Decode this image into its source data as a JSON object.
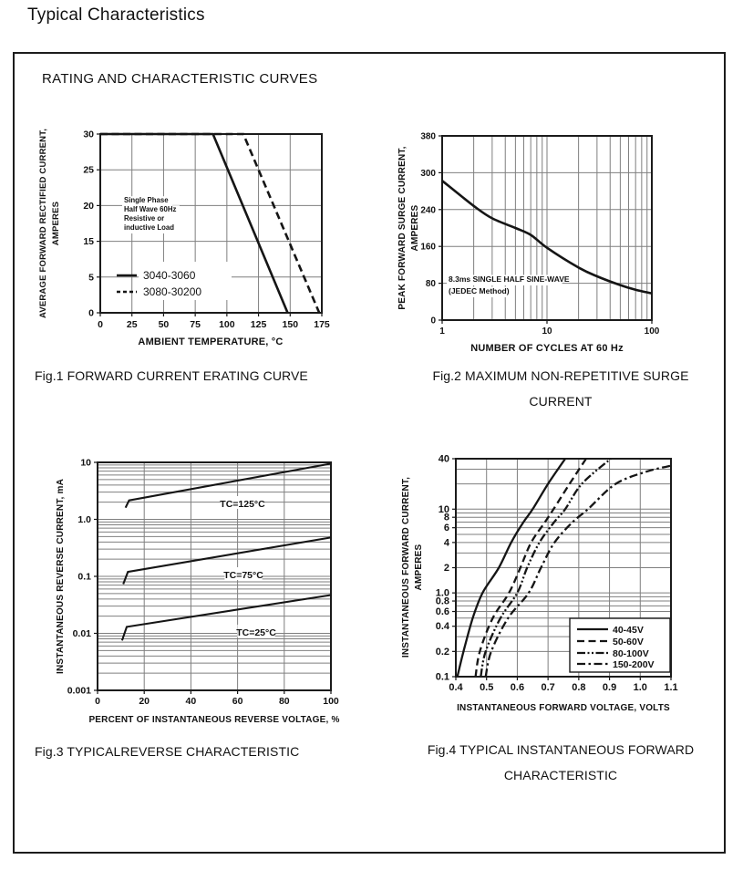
{
  "page": {
    "title": "Typical Characteristics",
    "section_heading": "RATING AND CHARACTERISTIC CURVES"
  },
  "chart_data": [
    {
      "id": "fig1",
      "type": "line",
      "caption_lines": [
        "Fig.1 FORWARD CURRENT ERATING CURVE"
      ],
      "xlabel": "AMBIENT TEMPERATURE, °C",
      "ylabel_lines": [
        "AVERAGE FORWARD RECTIFIED CURRENT,",
        "AMPERES"
      ],
      "x_axis": {
        "scale": "linear",
        "min": 0,
        "max": 175,
        "ticks": [
          {
            "v": 0,
            "label": "0"
          },
          {
            "v": 25,
            "label": "25"
          },
          {
            "v": 50,
            "label": "50"
          },
          {
            "v": 75,
            "label": "75"
          },
          {
            "v": 100,
            "label": "100"
          },
          {
            "v": 125,
            "label": "125"
          },
          {
            "v": 150,
            "label": "150"
          },
          {
            "v": 175,
            "label": "175"
          }
        ]
      },
      "y_axis": {
        "scale": "piecewise",
        "tick_values": [
          0,
          5,
          15,
          20,
          25,
          30
        ],
        "ticks": [
          {
            "v": 0,
            "label": "0"
          },
          {
            "v": 5,
            "label": "5"
          },
          {
            "v": 15,
            "label": "15"
          },
          {
            "v": 20,
            "label": "20"
          },
          {
            "v": 25,
            "label": "25"
          },
          {
            "v": 30,
            "label": "30"
          }
        ]
      },
      "note_lines": [
        "Single Phase",
        "Half Wave 60Hz",
        "Resistive or",
        "inductive Load"
      ],
      "series": [
        {
          "name": "3040-3060",
          "style": "solid",
          "smooth": false,
          "points": [
            [
              0,
              30
            ],
            [
              89,
              30
            ],
            [
              148,
              0
            ]
          ]
        },
        {
          "name": "3080-30200",
          "style": "dashed",
          "smooth": false,
          "points": [
            [
              0,
              30
            ],
            [
              113,
              30
            ],
            [
              173,
              0
            ]
          ]
        }
      ]
    },
    {
      "id": "fig2",
      "type": "line",
      "caption_lines": [
        "Fig.2 MAXIMUM NON-REPETITIVE SURGE",
        "CURRENT"
      ],
      "xlabel": "NUMBER OF CYCLES AT 60 Hz",
      "ylabel_lines": [
        "PEAK FORWARD SURGE CURRENT,",
        "AMPERES"
      ],
      "x_axis": {
        "scale": "log",
        "min": 1,
        "max": 100,
        "minor_grid": true,
        "ticks": [
          {
            "v": 1,
            "label": "1"
          },
          {
            "v": 10,
            "label": "10"
          },
          {
            "v": 100,
            "label": "100"
          }
        ]
      },
      "y_axis": {
        "scale": "piecewise",
        "tick_values": [
          0,
          80,
          160,
          240,
          300,
          380
        ],
        "ticks": [
          {
            "v": 0,
            "label": "0"
          },
          {
            "v": 80,
            "label": "80"
          },
          {
            "v": 160,
            "label": "160"
          },
          {
            "v": 240,
            "label": "240"
          },
          {
            "v": 300,
            "label": "300"
          },
          {
            "v": 380,
            "label": "380"
          }
        ]
      },
      "note_lines": [
        "8.3ms SINGLE HALF SINE-WAVE",
        "(JEDEC Method)"
      ],
      "series": [
        {
          "name": "surge-current",
          "style": "solid",
          "smooth": true,
          "points": [
            [
              1,
              287
            ],
            [
              2,
              246
            ],
            [
              3,
              221
            ],
            [
              5,
              200
            ],
            [
              7,
              185
            ],
            [
              10,
              157
            ],
            [
              20,
              114
            ],
            [
              30,
              95
            ],
            [
              50,
              76
            ],
            [
              70,
              66
            ],
            [
              100,
              58
            ]
          ]
        }
      ]
    },
    {
      "id": "fig3",
      "type": "line",
      "caption_lines": [
        "Fig.3 TYPICALREVERSE CHARACTERISTIC"
      ],
      "xlabel": "PERCENT OF INSTANTANEOUS REVERSE VOLTAGE, %",
      "ylabel_lines": [
        "INSTANTANEOUS REVERSE CURRENT, mA"
      ],
      "x_axis": {
        "scale": "linear",
        "min": 0,
        "max": 100,
        "ticks": [
          {
            "v": 0,
            "label": "0"
          },
          {
            "v": 20,
            "label": "20"
          },
          {
            "v": 40,
            "label": "40"
          },
          {
            "v": 60,
            "label": "60"
          },
          {
            "v": 80,
            "label": "80"
          },
          {
            "v": 100,
            "label": "100"
          }
        ]
      },
      "y_axis": {
        "scale": "log",
        "min": 0.001,
        "max": 10,
        "minor_grid": true,
        "ticks": [
          {
            "v": 10,
            "label": "10"
          },
          {
            "v": 1,
            "label": "1.0"
          },
          {
            "v": 0.1,
            "label": "0.1"
          },
          {
            "v": 0.01,
            "label": "0.01"
          },
          {
            "v": 0.001,
            "label": "0.001"
          }
        ]
      },
      "series": [
        {
          "name": "TC=125°C",
          "style": "solid",
          "smooth": false,
          "points": [
            [
              12,
              1.6
            ],
            [
              13.5,
              2.15
            ],
            [
              100,
              9.5
            ]
          ]
        },
        {
          "name": "TC=75°C",
          "style": "solid",
          "smooth": false,
          "points": [
            [
              11,
              0.073
            ],
            [
              13,
              0.12
            ],
            [
              100,
              0.48
            ]
          ]
        },
        {
          "name": "TC=25°C",
          "style": "solid",
          "smooth": false,
          "points": [
            [
              10.5,
              0.0075
            ],
            [
              12.5,
              0.013
            ],
            [
              100,
              0.047
            ]
          ]
        }
      ]
    },
    {
      "id": "fig4",
      "type": "line",
      "caption_lines": [
        "Fig.4 TYPICAL INSTANTANEOUS FORWARD",
        "CHARACTERISTIC"
      ],
      "xlabel": "INSTANTANEOUS FORWARD VOLTAGE, VOLTS",
      "ylabel_lines": [
        "INSTANTANEOUS FORWARD CURRENT,",
        "AMPERES"
      ],
      "x_axis": {
        "scale": "linear",
        "min": 0.4,
        "max": 1.1,
        "ticks": [
          {
            "v": 0.4,
            "label": "0.4"
          },
          {
            "v": 0.5,
            "label": "0.5"
          },
          {
            "v": 0.6,
            "label": "0.6"
          },
          {
            "v": 0.7,
            "label": "0.7"
          },
          {
            "v": 0.8,
            "label": "0.8"
          },
          {
            "v": 0.9,
            "label": "0.9"
          },
          {
            "v": 1.0,
            "label": "1.0"
          },
          {
            "v": 1.1,
            "label": "1.1"
          }
        ]
      },
      "y_axis": {
        "scale": "log",
        "min": 0.1,
        "max": 40,
        "minor_grid": true,
        "ticks": [
          {
            "v": 40,
            "label": "40"
          },
          {
            "v": 10,
            "label": "10"
          },
          {
            "v": 8,
            "label": "8"
          },
          {
            "v": 6,
            "label": "6"
          },
          {
            "v": 4,
            "label": "4"
          },
          {
            "v": 2,
            "label": "2"
          },
          {
            "v": 1,
            "label": "1.0"
          },
          {
            "v": 0.8,
            "label": "0.8"
          },
          {
            "v": 0.6,
            "label": "0.6"
          },
          {
            "v": 0.4,
            "label": "0.4"
          },
          {
            "v": 0.2,
            "label": "0.2"
          },
          {
            "v": 0.1,
            "label": "0.1"
          }
        ]
      },
      "series": [
        {
          "name": "40-45V",
          "style": "solid",
          "smooth": true,
          "points": [
            [
              0.405,
              0.1
            ],
            [
              0.425,
              0.2
            ],
            [
              0.455,
              0.5
            ],
            [
              0.487,
              1
            ],
            [
              0.54,
              2
            ],
            [
              0.58,
              4
            ],
            [
              0.62,
              7
            ],
            [
              0.65,
              10
            ],
            [
              0.7,
              20
            ],
            [
              0.756,
              40
            ]
          ]
        },
        {
          "name": "50-60V",
          "style": "dashed",
          "smooth": true,
          "points": [
            [
              0.464,
              0.1
            ],
            [
              0.478,
              0.2
            ],
            [
              0.52,
              0.5
            ],
            [
              0.573,
              1
            ],
            [
              0.61,
              2
            ],
            [
              0.645,
              4
            ],
            [
              0.69,
              7
            ],
            [
              0.718,
              10
            ],
            [
              0.77,
              20
            ],
            [
              0.824,
              40
            ]
          ]
        },
        {
          "name": "80-100V",
          "style": "dash-dot-dot",
          "smooth": true,
          "points": [
            [
              0.481,
              0.1
            ],
            [
              0.497,
              0.2
            ],
            [
              0.545,
              0.5
            ],
            [
              0.6,
              1
            ],
            [
              0.632,
              2
            ],
            [
              0.672,
              4
            ],
            [
              0.72,
              7
            ],
            [
              0.756,
              10
            ],
            [
              0.81,
              20
            ],
            [
              0.904,
              40
            ]
          ]
        },
        {
          "name": "150-200V",
          "style": "dash-dot",
          "smooth": true,
          "points": [
            [
              0.497,
              0.1
            ],
            [
              0.515,
              0.2
            ],
            [
              0.57,
              0.5
            ],
            [
              0.637,
              1
            ],
            [
              0.677,
              2
            ],
            [
              0.721,
              4
            ],
            [
              0.78,
              7
            ],
            [
              0.83,
              10
            ],
            [
              0.92,
              20
            ],
            [
              1.02,
              28
            ],
            [
              1.1,
              33
            ]
          ]
        }
      ]
    }
  ]
}
